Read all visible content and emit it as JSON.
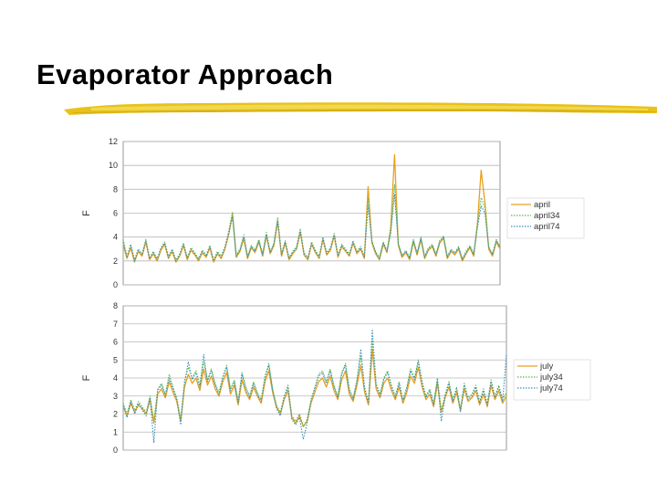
{
  "slide": {
    "title": "Evaporator Approach",
    "accent_color": "#e8c21a"
  },
  "chart_data": [
    {
      "type": "line",
      "title": "",
      "xlabel": "",
      "ylabel": "F",
      "ylim": [
        0,
        12
      ],
      "yticks": [
        0,
        2,
        4,
        6,
        8,
        10,
        12
      ],
      "grid": true,
      "legend_position": "right",
      "x": [
        0,
        4,
        8,
        12,
        16,
        20,
        24,
        28,
        32,
        36,
        40,
        44,
        48,
        52,
        56,
        60,
        64,
        68,
        72,
        76,
        80,
        84,
        88,
        92,
        96,
        100,
        104,
        108,
        112,
        116,
        120,
        124,
        128,
        132,
        136,
        140,
        144,
        148,
        152,
        156,
        160,
        164,
        168,
        172,
        176,
        180,
        184,
        188,
        192,
        196,
        200,
        204,
        208,
        212,
        216,
        220,
        224,
        228,
        232,
        236,
        240,
        244,
        248,
        252,
        256,
        260,
        264,
        268,
        272,
        276,
        280,
        284,
        288,
        292,
        296,
        300,
        304,
        308,
        312,
        316,
        320,
        324,
        328,
        332,
        336,
        340,
        344,
        348,
        352,
        356,
        360,
        364,
        368,
        372,
        376,
        380,
        384,
        388,
        392,
        396,
        400
      ],
      "series": [
        {
          "name": "april",
          "color": "#e8a020",
          "style": "solid",
          "values": [
            3.4,
            2.2,
            3.1,
            1.9,
            2.8,
            2.4,
            3.6,
            2.1,
            2.6,
            2.0,
            2.9,
            3.4,
            2.2,
            2.8,
            1.9,
            2.4,
            3.3,
            2.1,
            2.9,
            2.5,
            2.0,
            2.7,
            2.3,
            3.1,
            1.9,
            2.6,
            2.2,
            3.0,
            4.2,
            5.9,
            2.3,
            2.8,
            3.9,
            2.2,
            3.1,
            2.7,
            3.6,
            2.4,
            4.1,
            2.6,
            3.3,
            5.3,
            2.4,
            3.5,
            2.1,
            2.6,
            3.0,
            4.4,
            2.5,
            2.1,
            3.4,
            2.7,
            2.2,
            3.8,
            2.5,
            2.9,
            4.1,
            2.3,
            3.2,
            2.8,
            2.4,
            3.5,
            2.6,
            3.0,
            2.2,
            8.2,
            3.5,
            2.6,
            2.1,
            3.4,
            2.7,
            4.8,
            10.9,
            3.3,
            2.3,
            2.7,
            2.1,
            3.6,
            2.5,
            3.8,
            2.2,
            2.9,
            3.2,
            2.4,
            3.5,
            3.9,
            2.2,
            2.8,
            2.5,
            3.0,
            2.0,
            2.6,
            3.1,
            2.4,
            5.1,
            9.6,
            6.8,
            3.0,
            2.4,
            3.6,
            3.0
          ]
        },
        {
          "name": "april34",
          "color": "#5bb84a",
          "style": "dotted",
          "values": [
            3.8,
            2.4,
            3.4,
            2.1,
            3.0,
            2.6,
            3.8,
            2.3,
            2.8,
            2.2,
            3.1,
            3.6,
            2.4,
            3.0,
            2.1,
            2.6,
            3.5,
            2.3,
            3.1,
            2.7,
            2.2,
            2.9,
            2.5,
            3.3,
            2.1,
            2.8,
            2.4,
            3.2,
            4.5,
            6.1,
            2.5,
            3.0,
            4.2,
            2.4,
            3.3,
            2.9,
            3.8,
            2.6,
            4.4,
            2.8,
            3.5,
            5.6,
            2.6,
            3.7,
            2.3,
            2.8,
            3.2,
            4.7,
            2.7,
            2.3,
            3.6,
            2.9,
            2.4,
            4.0,
            2.7,
            3.1,
            4.3,
            2.5,
            3.4,
            3.0,
            2.6,
            3.7,
            2.8,
            3.2,
            2.4,
            7.2,
            3.7,
            2.8,
            2.3,
            3.6,
            2.9,
            4.6,
            8.4,
            3.5,
            2.5,
            2.9,
            2.3,
            3.8,
            2.7,
            4.0,
            2.4,
            3.1,
            3.4,
            2.6,
            3.7,
            4.1,
            2.4,
            3.0,
            2.7,
            3.2,
            2.2,
            2.8,
            3.3,
            2.6,
            5.0,
            7.3,
            6.4,
            3.2,
            2.6,
            3.8,
            3.2
          ]
        },
        {
          "name": "april74",
          "color": "#3a8fb8",
          "style": "dotted",
          "values": [
            3.6,
            2.3,
            3.3,
            2.0,
            2.9,
            2.5,
            3.7,
            2.2,
            2.7,
            2.1,
            3.0,
            3.5,
            2.3,
            2.9,
            2.0,
            2.5,
            3.4,
            2.2,
            3.0,
            2.6,
            2.1,
            2.8,
            2.4,
            3.2,
            2.0,
            2.7,
            2.3,
            3.1,
            4.3,
            5.7,
            2.4,
            2.9,
            4.0,
            2.3,
            3.2,
            2.8,
            3.7,
            2.5,
            4.2,
            2.7,
            3.4,
            5.4,
            2.5,
            3.6,
            2.2,
            2.7,
            3.1,
            4.5,
            2.6,
            2.2,
            3.5,
            2.8,
            2.3,
            3.9,
            2.6,
            3.0,
            4.2,
            2.4,
            3.3,
            2.9,
            2.5,
            3.6,
            2.7,
            3.1,
            2.3,
            6.6,
            3.6,
            2.7,
            2.2,
            3.5,
            2.8,
            4.3,
            7.6,
            3.4,
            2.4,
            2.8,
            2.2,
            3.7,
            2.6,
            3.9,
            2.3,
            3.0,
            3.3,
            2.5,
            3.6,
            4.0,
            2.3,
            2.9,
            2.6,
            3.1,
            2.1,
            2.7,
            3.2,
            2.5,
            4.8,
            6.6,
            6.0,
            3.1,
            2.5,
            3.7,
            3.1
          ]
        }
      ]
    },
    {
      "type": "line",
      "title": "",
      "xlabel": "",
      "ylabel": "F",
      "ylim": [
        0,
        8
      ],
      "yticks": [
        0,
        1,
        2,
        3,
        4,
        5,
        6,
        7,
        8
      ],
      "grid": true,
      "legend_position": "right",
      "x": [
        0,
        4,
        8,
        12,
        16,
        20,
        24,
        28,
        32,
        36,
        40,
        44,
        48,
        52,
        56,
        60,
        64,
        68,
        72,
        76,
        80,
        84,
        88,
        92,
        96,
        100,
        104,
        108,
        112,
        116,
        120,
        124,
        128,
        132,
        136,
        140,
        144,
        148,
        152,
        156,
        160,
        164,
        168,
        172,
        176,
        180,
        184,
        188,
        192,
        196,
        200,
        204,
        208,
        212,
        216,
        220,
        224,
        228,
        232,
        236,
        240,
        244,
        248,
        252,
        256,
        260,
        264,
        268,
        272,
        276,
        280,
        284,
        288,
        292,
        296,
        300,
        304,
        308,
        312,
        316,
        320,
        324,
        328,
        332,
        336,
        340,
        344,
        348,
        352,
        356,
        360,
        364,
        368,
        372,
        376,
        380,
        384,
        388,
        392,
        396,
        400
      ],
      "series": [
        {
          "name": "july",
          "color": "#e8a020",
          "style": "solid",
          "values": [
            2.4,
            1.9,
            2.6,
            2.1,
            2.5,
            2.3,
            2.0,
            2.8,
            1.5,
            3.1,
            3.4,
            2.9,
            3.8,
            3.2,
            2.7,
            1.6,
            3.5,
            4.2,
            3.7,
            4.0,
            3.3,
            4.5,
            3.6,
            4.1,
            3.4,
            3.0,
            3.8,
            4.3,
            3.1,
            3.6,
            2.5,
            3.9,
            3.2,
            2.8,
            3.5,
            3.0,
            2.6,
            3.8,
            4.4,
            3.2,
            2.4,
            2.0,
            2.8,
            3.3,
            1.8,
            1.5,
            1.9,
            1.3,
            1.6,
            2.6,
            3.2,
            3.8,
            4.0,
            3.5,
            4.1,
            3.3,
            2.8,
            3.9,
            4.4,
            3.1,
            2.7,
            3.6,
            4.7,
            3.2,
            2.5,
            5.6,
            3.4,
            2.9,
            3.7,
            4.0,
            3.3,
            2.8,
            3.5,
            2.6,
            3.2,
            4.1,
            3.7,
            4.6,
            3.5,
            2.8,
            3.1,
            2.4,
            3.7,
            2.1,
            2.9,
            3.5,
            2.6,
            3.2,
            2.2,
            3.4,
            2.7,
            2.9,
            3.3,
            2.5,
            3.1,
            2.4,
            3.6,
            2.8,
            3.3,
            2.6,
            3.0
          ]
        },
        {
          "name": "july34",
          "color": "#5bb84a",
          "style": "dotted",
          "values": [
            2.6,
            2.0,
            2.8,
            2.2,
            2.7,
            2.4,
            2.1,
            3.0,
            1.6,
            3.4,
            3.7,
            3.1,
            4.2,
            3.5,
            2.9,
            1.7,
            3.8,
            4.6,
            4.0,
            4.4,
            3.6,
            4.9,
            3.9,
            4.5,
            3.7,
            3.2,
            4.1,
            4.7,
            3.4,
            3.9,
            2.7,
            4.3,
            3.5,
            3.0,
            3.8,
            3.2,
            2.8,
            4.1,
            4.8,
            3.4,
            2.5,
            2.1,
            3.0,
            3.6,
            1.9,
            1.6,
            2.0,
            1.3,
            1.7,
            2.8,
            3.5,
            4.2,
            4.4,
            3.8,
            4.5,
            3.6,
            3.0,
            4.3,
            4.8,
            3.4,
            2.9,
            3.9,
            5.2,
            3.5,
            2.7,
            6.1,
            3.7,
            3.1,
            4.0,
            4.4,
            3.6,
            3.0,
            3.8,
            2.8,
            3.5,
            4.5,
            4.0,
            5.0,
            3.8,
            3.0,
            3.4,
            2.6,
            4.0,
            2.2,
            3.1,
            3.8,
            2.8,
            3.5,
            2.3,
            3.7,
            2.9,
            3.1,
            3.6,
            2.7,
            3.4,
            2.6,
            3.9,
            3.0,
            3.6,
            2.8,
            3.2
          ]
        },
        {
          "name": "july74",
          "color": "#3a8fb8",
          "style": "dotted",
          "values": [
            2.5,
            1.8,
            2.7,
            2.0,
            2.6,
            2.2,
            1.9,
            2.9,
            0.4,
            3.3,
            3.6,
            3.0,
            4.0,
            3.4,
            2.8,
            1.4,
            3.7,
            4.9,
            3.9,
            4.3,
            3.5,
            5.3,
            3.8,
            4.4,
            3.6,
            3.1,
            4.0,
            4.6,
            3.3,
            3.8,
            2.6,
            4.2,
            3.4,
            2.9,
            3.7,
            3.1,
            2.7,
            4.0,
            4.7,
            3.3,
            2.3,
            1.9,
            2.9,
            3.5,
            1.7,
            1.4,
            1.8,
            0.6,
            1.5,
            2.7,
            3.4,
            4.1,
            4.3,
            3.7,
            4.4,
            3.5,
            2.9,
            4.2,
            4.7,
            3.3,
            2.8,
            3.8,
            5.6,
            3.4,
            2.6,
            6.7,
            3.6,
            3.0,
            3.9,
            4.3,
            3.5,
            2.9,
            3.7,
            2.7,
            3.4,
            4.4,
            3.9,
            4.9,
            3.7,
            2.9,
            3.3,
            2.5,
            3.9,
            1.6,
            3.0,
            3.7,
            2.7,
            3.4,
            2.1,
            3.6,
            2.8,
            3.0,
            3.5,
            2.6,
            3.3,
            2.5,
            3.8,
            2.9,
            3.5,
            2.7,
            5.3
          ]
        }
      ]
    }
  ]
}
